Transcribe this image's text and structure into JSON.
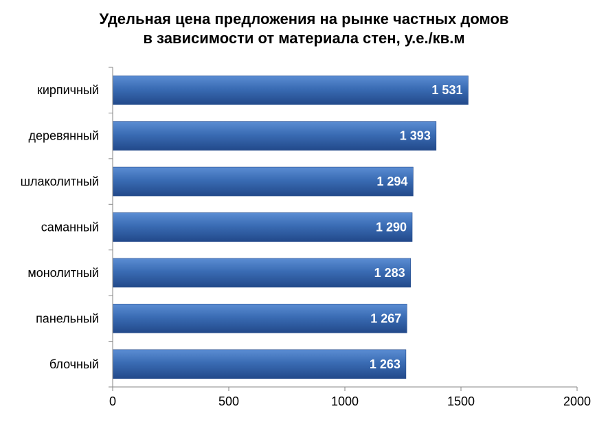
{
  "chart_data": {
    "type": "bar",
    "orientation": "horizontal",
    "title_lines": [
      "Удельная цена предложения на рынке частных домов",
      "в зависимости от материала стен, у.е./кв.м"
    ],
    "categories": [
      "кирпичный",
      "деревянный",
      "шлаколитный",
      "саманный",
      "монолитный",
      "панельный",
      "блочный"
    ],
    "values": [
      1531,
      1393,
      1294,
      1290,
      1283,
      1267,
      1263
    ],
    "data_labels": [
      "1 531",
      "1 393",
      "1 294",
      "1 290",
      "1 283",
      "1 267",
      "1 263"
    ],
    "xlim": [
      0,
      2000
    ],
    "x_ticks": [
      0,
      500,
      1000,
      1500,
      2000
    ],
    "x_tick_labels": [
      "0",
      "500",
      "1000",
      "1500",
      "2000"
    ],
    "grid": false,
    "legend": "none",
    "bar_color": "#3A6CB4",
    "bar_color_light": "#5B8DD3",
    "bar_color_dark": "#22498A"
  }
}
